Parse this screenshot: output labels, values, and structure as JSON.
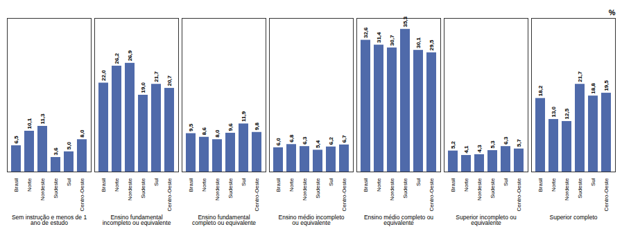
{
  "chart_data": {
    "type": "bar",
    "ylabel": "%",
    "categories": [
      "Brasil",
      "Norte",
      "Nordeste",
      "Sudeste",
      "Sul",
      "Centro-Oeste"
    ],
    "series": [
      {
        "name": "Sem instrução e menos de 1\nano de estudo",
        "values": [
          6.5,
          10.1,
          11.3,
          3.6,
          5.0,
          8.0
        ],
        "value_labels": [
          "6,5",
          "10,1",
          "11,3",
          "3,6",
          "5,0",
          "8,0"
        ]
      },
      {
        "name": "Ensino fundamental\nincompleto ou equivalente",
        "values": [
          22.0,
          26.2,
          26.9,
          19.0,
          21.7,
          20.7
        ],
        "value_labels": [
          "22,0",
          "26,2",
          "26,9",
          "19,0",
          "21,7",
          "20,7"
        ]
      },
      {
        "name": "Ensino fundamental\ncompleto ou equivalente",
        "values": [
          9.5,
          8.6,
          8.0,
          9.6,
          11.9,
          9.8
        ],
        "value_labels": [
          "9,5",
          "8,6",
          "8,0",
          "9,6",
          "11,9",
          "9,8"
        ]
      },
      {
        "name": "Ensino médio incompleto\nou equivalente",
        "values": [
          6.0,
          6.8,
          6.3,
          5.4,
          6.2,
          6.7
        ],
        "value_labels": [
          "6,0",
          "6,8",
          "6,3",
          "5,4",
          "6,2",
          "6,7"
        ]
      },
      {
        "name": "Ensino médio completo ou\nequivalente",
        "values": [
          32.6,
          31.4,
          30.7,
          35.3,
          30.1,
          29.5
        ],
        "value_labels": [
          "32,6",
          "31,4",
          "30,7",
          "35,3",
          "30,1",
          "29,5"
        ]
      },
      {
        "name": "Superior incompleto ou\nequivalente",
        "values": [
          5.2,
          4.1,
          4.3,
          5.3,
          6.3,
          5.7
        ],
        "value_labels": [
          "5,2",
          "4,1",
          "4,3",
          "5,3",
          "6,3",
          "5,7"
        ]
      },
      {
        "name": "Superior completo",
        "values": [
          18.2,
          13.0,
          12.5,
          21.7,
          18.8,
          19.5
        ],
        "value_labels": [
          "18,2",
          "13,0",
          "12,5",
          "21,7",
          "18,8",
          "19,5"
        ]
      }
    ],
    "color": "#4f6aaa",
    "ylim": [
      0,
      38
    ],
    "grid": false,
    "data_labels": true,
    "tick_labels": "x"
  }
}
